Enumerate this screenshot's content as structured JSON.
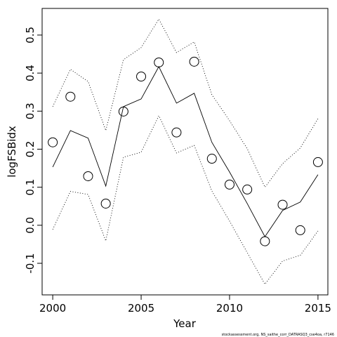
{
  "chart_data": {
    "type": "line",
    "xlabel": "Year",
    "ylabel": "logFSBidx",
    "footnote": "stockassessment.org, NS_saithe_corr_DATRASQ3_cse4oa, r7146",
    "x": [
      2000,
      2001,
      2002,
      2003,
      2004,
      2005,
      2006,
      2007,
      2008,
      2009,
      2010,
      2011,
      2012,
      2013,
      2014,
      2015
    ],
    "series": [
      {
        "style": "points",
        "color": "#000000",
        "values": [
          0.218,
          0.338,
          0.129,
          0.057,
          0.299,
          0.391,
          0.428,
          0.244,
          0.43,
          0.175,
          0.107,
          0.094,
          -0.042,
          0.054,
          -0.013,
          0.166
        ]
      },
      {
        "style": "solid",
        "color": "#000000",
        "values": [
          0.153,
          0.249,
          0.229,
          0.103,
          0.312,
          0.332,
          0.417,
          0.321,
          0.347,
          0.218,
          0.14,
          0.057,
          -0.03,
          0.039,
          0.061,
          0.133
        ]
      },
      {
        "style": "dotted",
        "color": "#000000",
        "values": [
          0.312,
          0.41,
          0.378,
          0.249,
          0.435,
          0.467,
          0.542,
          0.454,
          0.482,
          0.343,
          0.275,
          0.201,
          0.1,
          0.162,
          0.203,
          0.28
        ]
      },
      {
        "style": "dotted",
        "color": "#000000",
        "values": [
          -0.011,
          0.089,
          0.081,
          -0.041,
          0.179,
          0.192,
          0.288,
          0.19,
          0.21,
          0.09,
          0.011,
          -0.072,
          -0.155,
          -0.094,
          -0.079,
          -0.015
        ]
      }
    ],
    "xlim": [
      1999.4,
      2015.56
    ],
    "xticks": [
      2000,
      2005,
      2010,
      2015
    ],
    "ylim": [
      -0.183,
      0.57
    ],
    "yticks": [
      -0.1,
      {
        "value": 0,
        "label": "0.0"
      },
      0.1,
      0.2,
      0.3,
      0.4,
      0.5
    ]
  }
}
